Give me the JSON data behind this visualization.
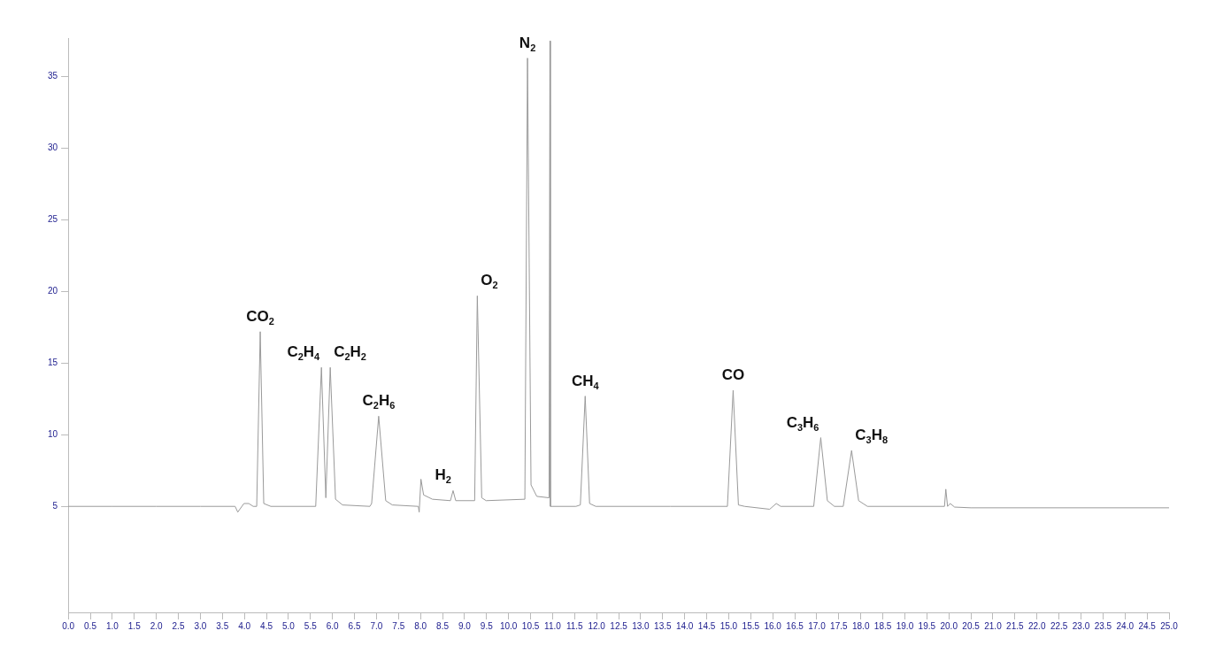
{
  "chart_data": {
    "type": "line",
    "x": [
      0,
      1.0,
      2.0,
      3.0,
      3.79,
      3.85,
      3.99,
      4.1,
      4.2,
      4.28,
      4.36,
      4.44,
      4.6,
      5.62,
      5.75,
      5.85,
      5.95,
      6.07,
      6.23,
      6.85,
      6.89,
      7.05,
      7.21,
      7.36,
      7.95,
      7.97,
      8.01,
      8.07,
      8.27,
      8.68,
      8.74,
      8.8,
      9.23,
      9.29,
      9.39,
      9.49,
      10.37,
      10.43,
      10.51,
      10.64,
      10.92,
      10.93,
      10.94,
      10.95,
      11.53,
      11.63,
      11.74,
      11.84,
      11.98,
      13.67,
      14.97,
      15.1,
      15.22,
      15.36,
      15.93,
      16.08,
      16.18,
      16.93,
      17.09,
      17.24,
      17.4,
      17.6,
      17.79,
      17.95,
      18.15,
      19.9,
      19.93,
      19.97,
      20.03,
      20.13,
      20.5,
      25.0
    ],
    "series": [
      {
        "color": "#9a9a9a",
        "values": [
          5.0,
          5.0,
          5.0,
          5.0,
          5.0,
          4.6,
          5.2,
          5.2,
          5.0,
          5.0,
          17.2,
          5.2,
          5.0,
          5.0,
          14.7,
          5.6,
          14.7,
          5.5,
          5.1,
          5.0,
          5.2,
          11.3,
          5.4,
          5.1,
          5.0,
          4.6,
          6.9,
          5.8,
          5.5,
          5.4,
          6.1,
          5.4,
          5.4,
          19.7,
          5.6,
          5.4,
          5.5,
          36.3,
          6.5,
          5.7,
          5.6,
          5.6,
          37.5,
          5.0,
          5.0,
          5.1,
          12.7,
          5.2,
          5.0,
          5.0,
          5.0,
          13.1,
          5.1,
          5.0,
          4.8,
          5.2,
          5.0,
          5.0,
          9.8,
          5.4,
          5.0,
          5.0,
          8.9,
          5.4,
          5.0,
          5.0,
          6.2,
          5.0,
          5.2,
          4.95,
          4.9,
          4.9
        ]
      }
    ],
    "xlim": [
      0,
      25.0
    ],
    "xticks": [
      {
        "value": 0,
        "label": "0.0"
      },
      {
        "value": 0.5,
        "label": "0.5"
      },
      {
        "value": 1,
        "label": "1.0"
      },
      {
        "value": 1.5,
        "label": "1.5"
      },
      {
        "value": 2,
        "label": "2.0"
      },
      {
        "value": 2.5,
        "label": "2.5"
      },
      {
        "value": 3,
        "label": "3.0"
      },
      {
        "value": 3.5,
        "label": "3.5"
      },
      {
        "value": 4,
        "label": "4.0"
      },
      {
        "value": 4.5,
        "label": "4.5"
      },
      {
        "value": 5,
        "label": "5.0"
      },
      {
        "value": 5.5,
        "label": "5.5"
      },
      {
        "value": 6,
        "label": "6.0"
      },
      {
        "value": 6.5,
        "label": "6.5"
      },
      {
        "value": 7,
        "label": "7.0"
      },
      {
        "value": 7.5,
        "label": "7.5"
      },
      {
        "value": 8,
        "label": "8.0"
      },
      {
        "value": 8.5,
        "label": "8.5"
      },
      {
        "value": 9,
        "label": "9.0"
      },
      {
        "value": 9.5,
        "label": "9.5"
      },
      {
        "value": 10,
        "label": "10.0"
      },
      {
        "value": 10.5,
        "label": "10.5"
      },
      {
        "value": 11,
        "label": "11.0"
      },
      {
        "value": 11.5,
        "label": "11.5"
      },
      {
        "value": 12,
        "label": "12.0"
      },
      {
        "value": 12.5,
        "label": "12.5"
      },
      {
        "value": 13,
        "label": "13.0"
      },
      {
        "value": 13.5,
        "label": "13.5"
      },
      {
        "value": 14,
        "label": "14.0"
      },
      {
        "value": 14.5,
        "label": "14.5"
      },
      {
        "value": 15,
        "label": "15.0"
      },
      {
        "value": 15.5,
        "label": "15.5"
      },
      {
        "value": 16,
        "label": "16.0"
      },
      {
        "value": 16.5,
        "label": "16.5"
      },
      {
        "value": 17,
        "label": "17.0"
      },
      {
        "value": 17.5,
        "label": "17.5"
      },
      {
        "value": 18,
        "label": "18.0"
      },
      {
        "value": 18.5,
        "label": "18.5"
      },
      {
        "value": 19,
        "label": "19.0"
      },
      {
        "value": 19.5,
        "label": "19.5"
      },
      {
        "value": 20,
        "label": "20.0"
      },
      {
        "value": 20.5,
        "label": "20.5"
      },
      {
        "value": 21,
        "label": "21.0"
      },
      {
        "value": 21.5,
        "label": "21.5"
      },
      {
        "value": 22,
        "label": "22.0"
      },
      {
        "value": 22.5,
        "label": "22.5"
      },
      {
        "value": 23,
        "label": "23.0"
      },
      {
        "value": 23.5,
        "label": "23.5"
      },
      {
        "value": 24,
        "label": "24.0"
      },
      {
        "value": 24.5,
        "label": "24.5"
      },
      {
        "value": 25,
        "label": "25.0"
      }
    ],
    "ylim": [
      -2.4,
      37.7
    ],
    "yticks": [
      5,
      10,
      15,
      20,
      25,
      30,
      35
    ],
    "annotations": [
      {
        "text": "CO$_{2}$",
        "x": 4.36,
        "y": 17.2
      },
      {
        "text": "C$_{2}$H$_{4}$",
        "x": 5.75,
        "y": 14.7
      },
      {
        "text": "C$_{2}$H$_{2}$",
        "x": 5.95,
        "y": 14.7
      },
      {
        "text": "C$_{2}$H$_{6}$",
        "x": 7.05,
        "y": 11.3
      },
      {
        "text": "H$_{2}$",
        "x": 8.74,
        "y": 6.1
      },
      {
        "text": "O$_{2}$",
        "x": 9.29,
        "y": 19.7
      },
      {
        "text": "N$_{2}$",
        "x": 10.43,
        "y": 36.3
      },
      {
        "text": "CH$_{4}$",
        "x": 11.74,
        "y": 12.7
      },
      {
        "text": "CO",
        "x": 15.1,
        "y": 13.1
      },
      {
        "text": "C$_{3}$H$_{6}$",
        "x": 17.09,
        "y": 9.8
      },
      {
        "text": "C$_{3}$H$_{8}$",
        "x": 17.79,
        "y": 8.9
      }
    ],
    "grid": false,
    "legend": false,
    "marker": "none",
    "line_style": "solid"
  }
}
